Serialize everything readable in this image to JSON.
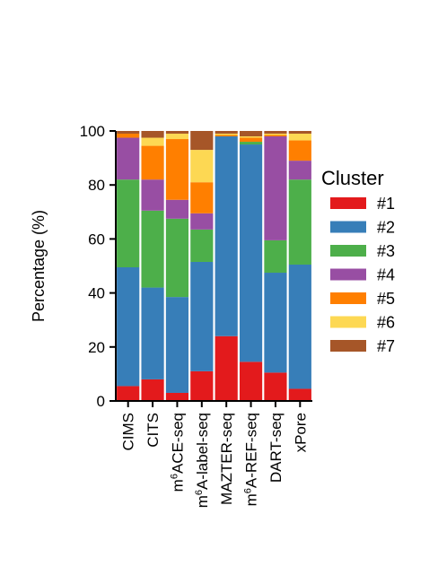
{
  "chart_data": {
    "type": "bar",
    "stacked": true,
    "ylabel": "Percentage (%)",
    "ylim": [
      0,
      100
    ],
    "yticks": [
      0,
      20,
      40,
      60,
      80,
      100
    ],
    "grid": false,
    "legend": {
      "title": "Cluster",
      "position": "right"
    },
    "categories": [
      {
        "base": "CIMS",
        "sup": "",
        "rest": ""
      },
      {
        "base": "CITS",
        "sup": "",
        "rest": ""
      },
      {
        "base": "m",
        "sup": "6",
        "rest": "ACE-seq"
      },
      {
        "base": "m",
        "sup": "6",
        "rest": "A-label-seq"
      },
      {
        "base": "MAZTER-seq",
        "sup": "",
        "rest": ""
      },
      {
        "base": "m",
        "sup": "6",
        "rest": "A-REF-seq"
      },
      {
        "base": "DART-seq",
        "sup": "",
        "rest": ""
      },
      {
        "base": "xPore",
        "sup": "",
        "rest": ""
      }
    ],
    "series": [
      {
        "name": "#1",
        "color": "#e31a1c",
        "values": [
          5.5,
          8.0,
          3.0,
          11.0,
          24.0,
          14.5,
          10.5,
          4.5
        ]
      },
      {
        "name": "#2",
        "color": "#377eb8",
        "values": [
          44.0,
          34.0,
          35.5,
          40.5,
          74.0,
          80.5,
          37.0,
          46.0
        ]
      },
      {
        "name": "#3",
        "color": "#4daf4a",
        "values": [
          32.5,
          28.5,
          29.0,
          12.0,
          0.0,
          1.0,
          12.0,
          31.5
        ]
      },
      {
        "name": "#4",
        "color": "#984ea3",
        "values": [
          15.5,
          11.5,
          7.0,
          6.0,
          0.0,
          0.0,
          38.5,
          7.0
        ]
      },
      {
        "name": "#5",
        "color": "#ff7f00",
        "values": [
          1.5,
          12.5,
          22.5,
          11.5,
          0.5,
          1.5,
          0.5,
          7.5
        ]
      },
      {
        "name": "#6",
        "color": "#fdd853",
        "values": [
          0.0,
          3.0,
          2.0,
          12.0,
          0.5,
          0.5,
          0.5,
          2.5
        ]
      },
      {
        "name": "#7",
        "color": "#a65628",
        "values": [
          1.0,
          2.5,
          1.0,
          7.0,
          1.0,
          2.0,
          1.0,
          1.0
        ]
      }
    ]
  }
}
